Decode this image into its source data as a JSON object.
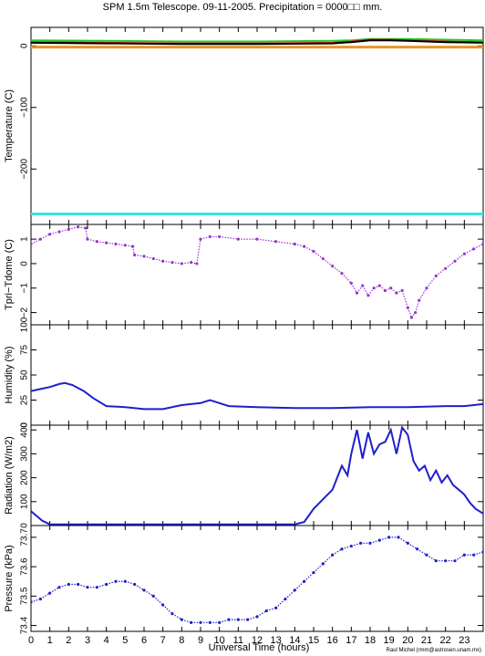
{
  "title": "SPM 1.5m Telescope. 09-11-2005. Precipitation = 0000□□ mm.",
  "xlabel": "Universal Time (hours)",
  "credit": "Raul Michel (rmm@astrosen.unam.mx)",
  "x_ticks": [
    "0",
    "1",
    "2",
    "3",
    "4",
    "5",
    "6",
    "7",
    "8",
    "9",
    "10",
    "11",
    "12",
    "13",
    "14",
    "15",
    "16",
    "17",
    "18",
    "19",
    "20",
    "21",
    "22",
    "23"
  ],
  "colors": {
    "axis": "#000000",
    "green": "#22cc22",
    "red": "#cc2222",
    "black": "#000000",
    "orange": "#e8962a",
    "cyan": "#33e6e6",
    "purple": "#9933cc",
    "blue": "#1f1fcc"
  },
  "chart_data": [
    {
      "type": "line",
      "id": "temperature",
      "ylabel": "Temperature (C)",
      "xlim": [
        0,
        24
      ],
      "ylim": [
        -290,
        30
      ],
      "y_ticks": [
        0,
        -100,
        -200
      ],
      "y_tick_labels": [
        "0",
        "−100",
        "−200"
      ],
      "series": [
        {
          "color": "green",
          "x": [
            0,
            4,
            8,
            12,
            16,
            17,
            18,
            19,
            20,
            22,
            24
          ],
          "y": [
            9,
            8,
            7,
            7,
            8,
            9,
            11,
            11,
            11,
            10,
            9
          ]
        },
        {
          "color": "red",
          "x": [
            0,
            4,
            8,
            12,
            16,
            17,
            18,
            19,
            20,
            22,
            24
          ],
          "y": [
            6,
            5,
            4,
            4,
            5,
            7,
            10,
            10,
            9,
            7,
            6
          ]
        },
        {
          "color": "black",
          "x": [
            0,
            4,
            8,
            12,
            16,
            17,
            18,
            19,
            20,
            22,
            24
          ],
          "y": [
            5,
            4,
            3,
            3,
            4,
            6,
            9,
            9,
            8,
            6,
            5
          ]
        },
        {
          "color": "orange",
          "x": [
            0,
            24
          ],
          "y": [
            -2,
            -2
          ]
        },
        {
          "color": "cyan",
          "x": [
            0,
            24
          ],
          "y": [
            -273,
            -273
          ]
        }
      ]
    },
    {
      "type": "scatter",
      "id": "tpri-tdome",
      "ylabel": "Tpri−Tdome (C)",
      "xlim": [
        0,
        24
      ],
      "ylim": [
        -2.5,
        1.6
      ],
      "y_ticks": [
        1,
        0,
        -1,
        -2
      ],
      "y_tick_labels": [
        "1",
        "0",
        "−1",
        "−2"
      ],
      "color": "purple",
      "x": [
        0,
        0.5,
        1,
        1.5,
        2,
        2.5,
        2.9,
        3.0,
        3.5,
        4.0,
        4.5,
        5.0,
        5.4,
        5.5,
        6.0,
        6.5,
        7.0,
        7.5,
        8.0,
        8.5,
        8.8,
        9.0,
        9.5,
        10,
        11,
        12,
        13,
        14,
        14.5,
        15,
        15.5,
        16,
        16.5,
        17,
        17.3,
        17.6,
        17.9,
        18.2,
        18.5,
        18.8,
        19.1,
        19.4,
        19.7,
        20.0,
        20.2,
        20.4,
        20.6,
        21.0,
        21.5,
        22.0,
        22.5,
        23.0,
        23.5,
        24.0
      ],
      "y": [
        0.8,
        1.0,
        1.2,
        1.3,
        1.4,
        1.5,
        1.45,
        1.0,
        0.9,
        0.85,
        0.8,
        0.75,
        0.7,
        0.35,
        0.3,
        0.2,
        0.1,
        0.05,
        0.0,
        0.05,
        0.0,
        1.0,
        1.1,
        1.1,
        1.0,
        1.0,
        0.9,
        0.8,
        0.7,
        0.5,
        0.2,
        -0.1,
        -0.4,
        -0.8,
        -1.2,
        -0.9,
        -1.3,
        -1.0,
        -0.9,
        -1.1,
        -1.0,
        -1.2,
        -1.1,
        -1.8,
        -2.2,
        -2.0,
        -1.5,
        -1.0,
        -0.5,
        -0.2,
        0.1,
        0.4,
        0.6,
        0.8
      ]
    },
    {
      "type": "line",
      "id": "humidity",
      "ylabel": "Humidity (%)",
      "xlim": [
        0,
        24
      ],
      "ylim": [
        0,
        100
      ],
      "y_ticks": [
        0,
        25,
        50,
        75,
        100
      ],
      "y_tick_labels": [
        "0",
        "25",
        "50",
        "75",
        "100"
      ],
      "color": "blue",
      "x": [
        0,
        0.5,
        1.0,
        1.5,
        1.8,
        2.2,
        2.8,
        3.3,
        4.0,
        5.0,
        6.0,
        7.0,
        8.0,
        9.0,
        9.5,
        10.0,
        10.5,
        12,
        14,
        16,
        18,
        20,
        22,
        23,
        24
      ],
      "y": [
        34,
        36,
        38,
        41,
        42,
        40,
        34,
        27,
        19,
        18,
        16,
        16,
        20,
        22,
        25,
        22,
        19,
        18,
        17,
        17,
        18,
        18,
        19,
        19,
        21
      ]
    },
    {
      "type": "line",
      "id": "radiation",
      "ylabel": "Radiation (W/m2)",
      "xlim": [
        0,
        24
      ],
      "ylim": [
        0,
        420
      ],
      "y_ticks": [
        0,
        100,
        200,
        300,
        400
      ],
      "y_tick_labels": [
        "0",
        "100",
        "200",
        "300",
        "400"
      ],
      "color": "blue",
      "x": [
        0,
        0.3,
        0.6,
        1.0,
        5,
        10,
        14.0,
        14.5,
        15.0,
        15.5,
        16.0,
        16.5,
        16.8,
        17.0,
        17.3,
        17.6,
        17.9,
        18.2,
        18.5,
        18.8,
        19.1,
        19.4,
        19.7,
        20.0,
        20.3,
        20.6,
        20.9,
        21.2,
        21.5,
        21.8,
        22.1,
        22.4,
        22.7,
        23.0,
        23.3,
        23.6,
        24.0
      ],
      "y": [
        60,
        40,
        20,
        5,
        5,
        5,
        5,
        15,
        70,
        110,
        150,
        250,
        210,
        300,
        400,
        280,
        390,
        300,
        340,
        350,
        400,
        300,
        410,
        380,
        270,
        230,
        250,
        190,
        230,
        180,
        210,
        170,
        150,
        130,
        95,
        70,
        50
      ]
    },
    {
      "type": "scatter",
      "id": "pressure",
      "ylabel": "Pressure (kPa)",
      "xlim": [
        0,
        24
      ],
      "ylim": [
        73.38,
        73.74
      ],
      "y_ticks": [
        73.4,
        73.5,
        73.6,
        73.7
      ],
      "y_tick_labels": [
        "73.4",
        "73.5",
        "73.6",
        "73.7"
      ],
      "color": "blue",
      "x": [
        0,
        0.5,
        1.0,
        1.5,
        2.0,
        2.5,
        3.0,
        3.5,
        4.0,
        4.5,
        5.0,
        5.5,
        6.0,
        6.5,
        7.0,
        7.5,
        8.0,
        8.5,
        9.0,
        9.5,
        10.0,
        10.5,
        11.0,
        11.5,
        12.0,
        12.5,
        13.0,
        13.5,
        14.0,
        14.5,
        15.0,
        15.5,
        16.0,
        16.5,
        17.0,
        17.5,
        18.0,
        18.5,
        19.0,
        19.5,
        20.0,
        20.5,
        21.0,
        21.5,
        22.0,
        22.5,
        23.0,
        23.5,
        24.0
      ],
      "y": [
        73.48,
        73.49,
        73.51,
        73.53,
        73.54,
        73.54,
        73.53,
        73.53,
        73.54,
        73.55,
        73.55,
        73.54,
        73.52,
        73.5,
        73.47,
        73.44,
        73.42,
        73.41,
        73.41,
        73.41,
        73.41,
        73.42,
        73.42,
        73.42,
        73.43,
        73.45,
        73.46,
        73.49,
        73.52,
        73.55,
        73.58,
        73.61,
        73.64,
        73.66,
        73.67,
        73.68,
        73.68,
        73.69,
        73.7,
        73.7,
        73.68,
        73.66,
        73.64,
        73.62,
        73.62,
        73.62,
        73.64,
        73.64,
        73.65
      ]
    }
  ]
}
